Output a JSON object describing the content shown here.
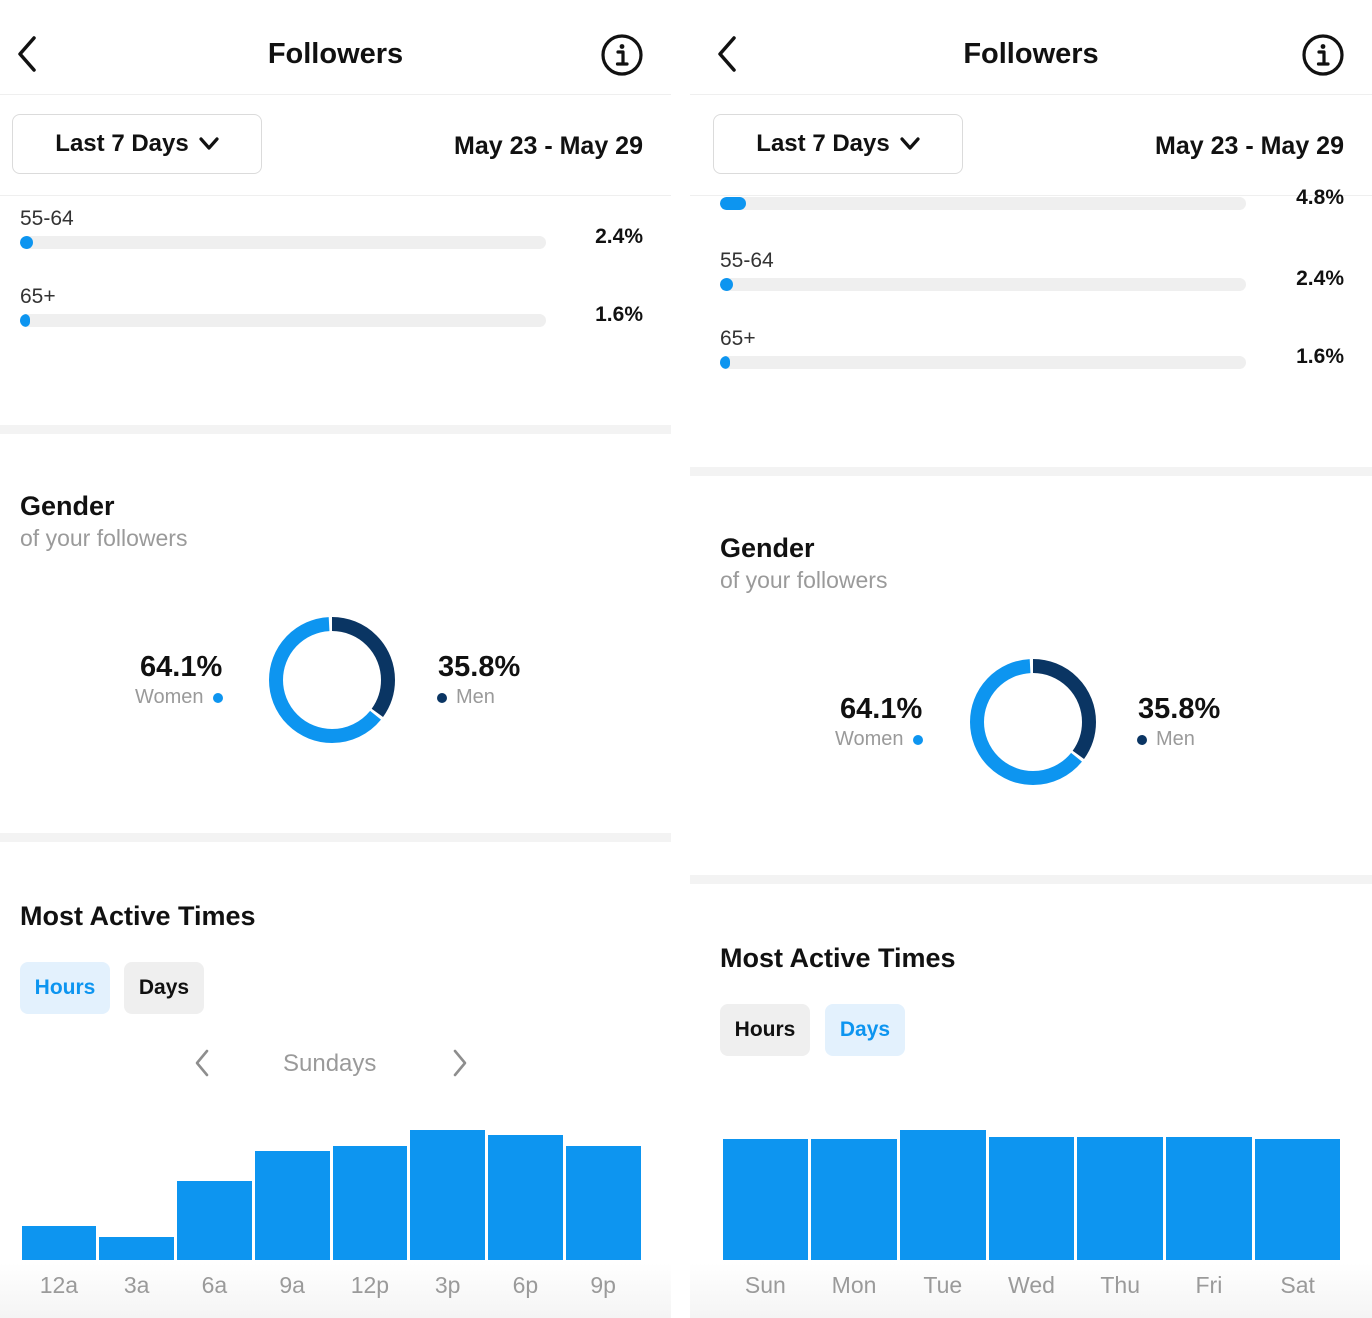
{
  "colors": {
    "accent": "#0d95f0",
    "dark": "#0a3563",
    "track": "#efefef",
    "muted": "#9a9a9a"
  },
  "left": {
    "header": {
      "title": "Followers",
      "back_icon": "chevron-left-icon",
      "info_icon": "info-icon"
    },
    "filter": {
      "dropdown_label": "Last 7 Days",
      "date_range": "May 23 - May 29"
    },
    "age_ranges": [
      {
        "label": "55-64",
        "percent": "2.4%",
        "fraction": 0.024
      },
      {
        "label": "65+",
        "percent": "1.6%",
        "fraction": 0.016
      }
    ],
    "gender": {
      "title": "Gender",
      "subtitle": "of your followers",
      "women": {
        "value": "64.1%",
        "label": "Women",
        "fraction": 0.641
      },
      "men": {
        "value": "35.8%",
        "label": "Men",
        "fraction": 0.358
      }
    },
    "active_times": {
      "title": "Most Active Times",
      "tabs": {
        "hours": "Hours",
        "days": "Days"
      },
      "selected_tab": "hours",
      "day_selector": "Sundays"
    }
  },
  "right": {
    "header": {
      "title": "Followers",
      "back_icon": "chevron-left-icon",
      "info_icon": "info-icon"
    },
    "filter": {
      "dropdown_label": "Last 7 Days",
      "date_range": "May 23 - May 29"
    },
    "age_ranges": [
      {
        "label": "",
        "percent": "4.8%",
        "fraction": 0.048
      },
      {
        "label": "55-64",
        "percent": "2.4%",
        "fraction": 0.024
      },
      {
        "label": "65+",
        "percent": "1.6%",
        "fraction": 0.016
      }
    ],
    "gender": {
      "title": "Gender",
      "subtitle": "of your followers",
      "women": {
        "value": "64.1%",
        "label": "Women",
        "fraction": 0.641
      },
      "men": {
        "value": "35.8%",
        "label": "Men",
        "fraction": 0.358
      }
    },
    "active_times": {
      "title": "Most Active Times",
      "tabs": {
        "hours": "Hours",
        "days": "Days"
      },
      "selected_tab": "days"
    }
  },
  "chart_data": [
    {
      "type": "bar",
      "title": "",
      "categories": [
        "12a",
        "3a",
        "6a",
        "9a",
        "12p",
        "3p",
        "6p",
        "9p"
      ],
      "values": [
        0.26,
        0.18,
        0.61,
        0.84,
        0.88,
        1.0,
        0.96,
        0.88
      ],
      "ylim": [
        0,
        1
      ]
    },
    {
      "type": "bar",
      "title": "",
      "categories": [
        "Sun",
        "Mon",
        "Tue",
        "Wed",
        "Thu",
        "Fri",
        "Sat"
      ],
      "values": [
        0.93,
        0.93,
        1.0,
        0.95,
        0.95,
        0.95,
        0.93
      ],
      "ylim": [
        0,
        1
      ]
    }
  ]
}
